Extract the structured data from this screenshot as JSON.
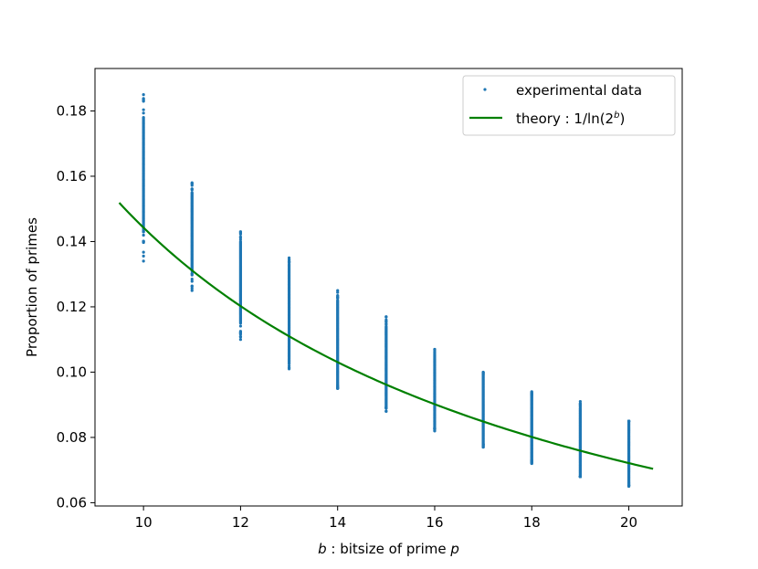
{
  "chart_data": {
    "type": "scatter",
    "xlabel": {
      "var": "b",
      "text": " : bitsize of prime ",
      "var2": "p"
    },
    "ylabel": "Proportion of primes",
    "xlim": [
      9.0,
      21.1
    ],
    "ylim": [
      0.059,
      0.193
    ],
    "xticks": [
      10,
      12,
      14,
      16,
      18,
      20
    ],
    "xtick_labels": [
      "10",
      "12",
      "14",
      "16",
      "18",
      "20"
    ],
    "yticks": [
      0.06,
      0.08,
      0.1,
      0.12,
      0.14,
      0.16,
      0.18
    ],
    "ytick_labels": [
      "0.06",
      "0.08",
      "0.10",
      "0.12",
      "0.14",
      "0.16",
      "0.18"
    ],
    "grid": false,
    "legend_position": "top-right",
    "legend": [
      {
        "label": "experimental data",
        "kind": "marker"
      },
      {
        "label": "theory : 1/ln(2",
        "sup": "b",
        "suffix": ")",
        "kind": "line"
      }
    ],
    "colors": {
      "data": "#1f77b4",
      "theory": "#008000"
    },
    "experimental": [
      {
        "x": 10,
        "min": 0.134,
        "max": 0.185,
        "dense_min": 0.143,
        "dense_max": 0.178
      },
      {
        "x": 11,
        "min": 0.125,
        "max": 0.158,
        "dense_min": 0.131,
        "dense_max": 0.155
      },
      {
        "x": 12,
        "min": 0.11,
        "max": 0.143,
        "dense_min": 0.115,
        "dense_max": 0.14
      },
      {
        "x": 13,
        "min": 0.101,
        "max": 0.135,
        "dense_min": 0.104,
        "dense_max": 0.133
      },
      {
        "x": 14,
        "min": 0.095,
        "max": 0.125,
        "dense_min": 0.096,
        "dense_max": 0.122
      },
      {
        "x": 15,
        "min": 0.088,
        "max": 0.117,
        "dense_min": 0.09,
        "dense_max": 0.114
      },
      {
        "x": 16,
        "min": 0.082,
        "max": 0.107,
        "dense_min": 0.083,
        "dense_max": 0.105
      },
      {
        "x": 17,
        "min": 0.077,
        "max": 0.1,
        "dense_min": 0.078,
        "dense_max": 0.099
      },
      {
        "x": 18,
        "min": 0.072,
        "max": 0.094,
        "dense_min": 0.073,
        "dense_max": 0.093
      },
      {
        "x": 19,
        "min": 0.068,
        "max": 0.091,
        "dense_min": 0.068,
        "dense_max": 0.089
      },
      {
        "x": 20,
        "min": 0.065,
        "max": 0.085,
        "dense_min": 0.066,
        "dense_max": 0.085
      }
    ],
    "theory": {
      "x_start": 9.5,
      "x_end": 20.5,
      "formula": "1/(b*ln 2)"
    }
  }
}
